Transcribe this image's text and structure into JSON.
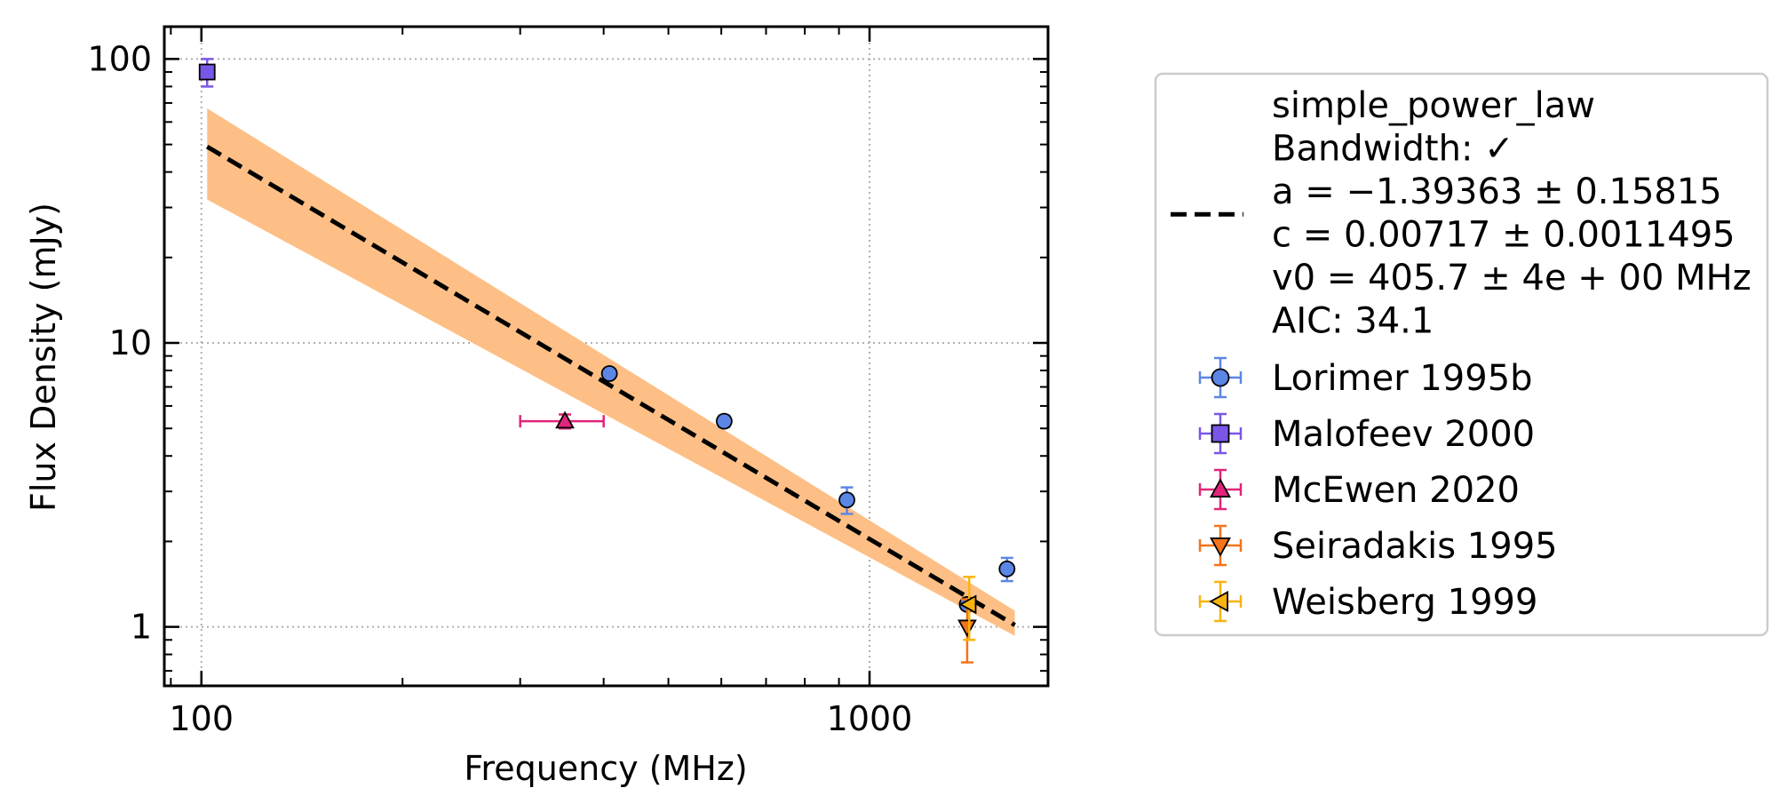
{
  "chart_data": {
    "type": "scatter",
    "title": "",
    "xlabel": "Frequency (MHz)",
    "ylabel": "Flux Density (mJy)",
    "xscale": "log",
    "yscale": "log",
    "xlim": [
      88,
      1850
    ],
    "ylim": [
      0.62,
      130
    ],
    "grid": "major, dotted",
    "legend_position": "outside right",
    "x_ticks": [
      {
        "value": 100,
        "label": "100"
      },
      {
        "value": 1000,
        "label": "1000"
      }
    ],
    "y_ticks": [
      {
        "value": 1,
        "label": "1"
      },
      {
        "value": 10,
        "label": "10"
      },
      {
        "value": 100,
        "label": "100"
      }
    ],
    "fit": {
      "model": "simple_power_law",
      "legend_lines": [
        "simple_power_law",
        "Bandwidth: ✓",
        "a = −1.39363 ± 0.15815",
        "c = 0.00717 ± 0.0011495",
        "v0 = 405.7 ± 4e + 00 MHz",
        "AIC: 34.1"
      ],
      "a": -1.39363,
      "c": 0.00717,
      "v0": 405.7,
      "x_range": [
        102,
        1650
      ],
      "line_color": "#000000",
      "band_color": "#fdbf85",
      "band_upper": [
        {
          "x": 102,
          "y": 67
        },
        {
          "x": 1650,
          "y": 1.14
        }
      ],
      "band_lower": [
        {
          "x": 102,
          "y": 32
        },
        {
          "x": 1650,
          "y": 0.93
        }
      ]
    },
    "series": [
      {
        "name": "Lorimer 1995b",
        "marker": "circle",
        "color": "#5b86e5",
        "edge": "#000000",
        "points": [
          {
            "x": 408,
            "y": 7.8,
            "yerr": 0.3
          },
          {
            "x": 606,
            "y": 5.3,
            "yerr": 0.25
          },
          {
            "x": 925,
            "y": 2.8,
            "yerr": 0.3
          },
          {
            "x": 1400,
            "y": 1.2,
            "yerr": 0.05
          },
          {
            "x": 1606,
            "y": 1.6,
            "yerr": 0.15
          }
        ]
      },
      {
        "name": "Malofeev 2000",
        "marker": "square",
        "color": "#7a56e8",
        "edge": "#000000",
        "points": [
          {
            "x": 102,
            "y": 90,
            "yerr": 10
          }
        ]
      },
      {
        "name": "McEwen 2020",
        "marker": "triangle-up",
        "color": "#e0257a",
        "edge": "#000000",
        "points": [
          {
            "x": 350,
            "y": 5.3,
            "yerr": 0.3,
            "xmin": 300,
            "xmax": 400
          }
        ]
      },
      {
        "name": "Seiradakis 1995",
        "marker": "triangle-down",
        "color": "#f5731a",
        "edge": "#000000",
        "points": [
          {
            "x": 1400,
            "y": 1.0,
            "yerr": 0.25
          }
        ]
      },
      {
        "name": "Weisberg 1999",
        "marker": "triangle-left",
        "color": "#f9b310",
        "edge": "#000000",
        "points": [
          {
            "x": 1410,
            "y": 1.2,
            "yerr": 0.3
          }
        ]
      }
    ]
  }
}
